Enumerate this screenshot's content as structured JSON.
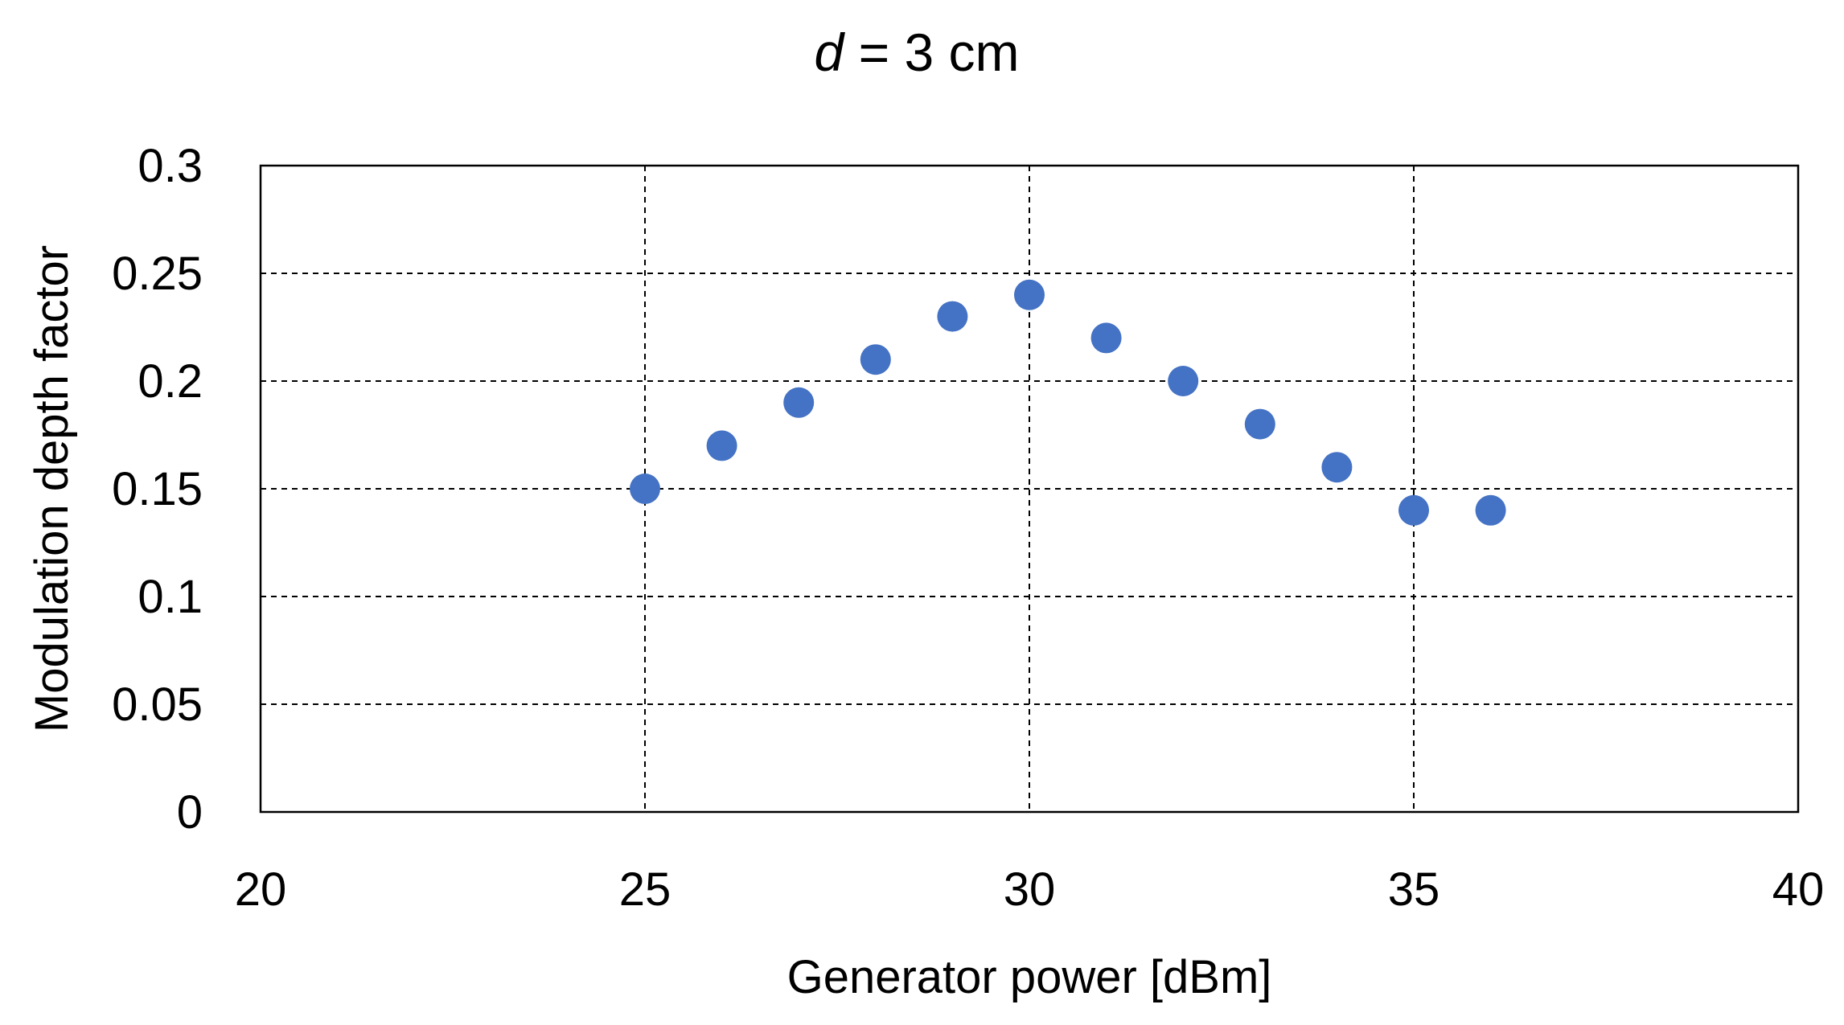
{
  "chart_data": {
    "type": "scatter",
    "title_var": "d",
    "title_rest": " = 3 cm",
    "xlabel": "Generator power [dBm]",
    "ylabel": "Modulation depth factor",
    "xlim": [
      20,
      40
    ],
    "ylim": [
      0,
      0.3
    ],
    "x_ticks": [
      "20",
      "25",
      "30",
      "35",
      "40"
    ],
    "y_ticks": [
      "0",
      "0.05",
      "0.1",
      "0.15",
      "0.2",
      "0.25",
      "0.3"
    ],
    "grid": true,
    "legend": "none",
    "marker_color": "#4472C4",
    "series": [
      {
        "x": [
          25,
          26,
          27,
          28,
          29,
          30,
          31,
          32,
          33,
          34,
          35,
          36
        ],
        "y": [
          0.15,
          0.17,
          0.19,
          0.21,
          0.23,
          0.24,
          0.22,
          0.2,
          0.18,
          0.16,
          0.14,
          0.14
        ]
      }
    ]
  }
}
